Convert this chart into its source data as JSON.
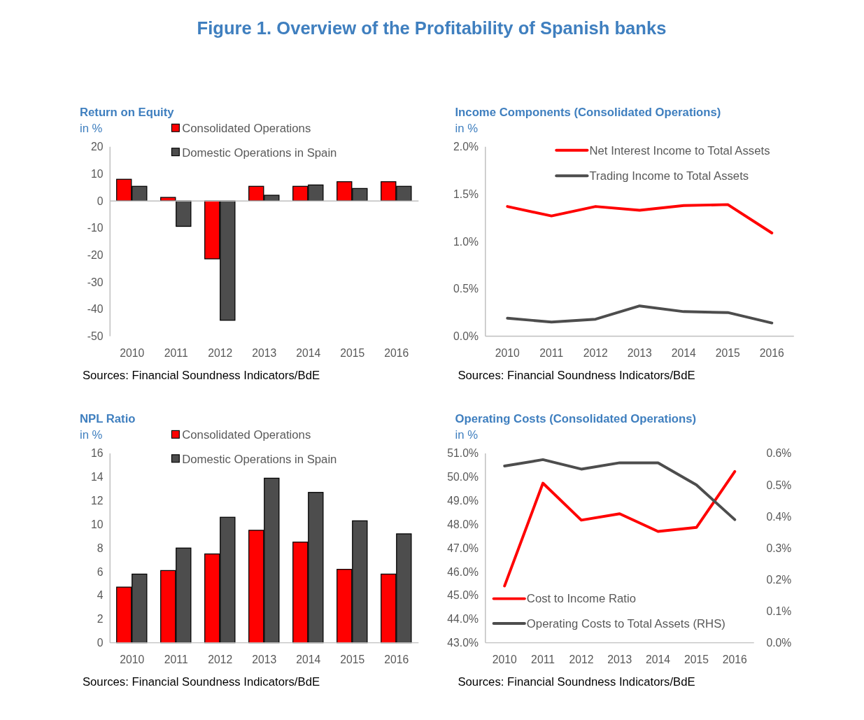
{
  "chart_data": [
    {
      "type": "other",
      "title": "Figure 1. Overview of the Profitability of Spanish banks"
    },
    {
      "type": "bar",
      "title": "Return on Equity",
      "ylabel": "in %",
      "categories": [
        "2010",
        "2011",
        "2012",
        "2013",
        "2014",
        "2015",
        "2016"
      ],
      "series": [
        {
          "name": "Consolidated Operations",
          "color": "#ff0000",
          "values": [
            8.0,
            1.3,
            -21.4,
            5.4,
            5.4,
            7.1,
            7.1
          ]
        },
        {
          "name": "Domestic Operations in Spain",
          "color": "#4d4d4d",
          "values": [
            5.4,
            -9.4,
            -44.1,
            2.1,
            5.9,
            4.6,
            5.4
          ]
        }
      ],
      "ylim": [
        -50,
        20
      ],
      "yticks": [
        -50,
        -40,
        -30,
        -20,
        -10,
        0,
        10,
        20
      ],
      "legend": "top",
      "annotations": [
        "Sources: Financial Soundness Indicators/BdE"
      ]
    },
    {
      "type": "line",
      "title": "Income Components (Consolidated Operations)",
      "ylabel": "in %",
      "categories": [
        "2010",
        "2011",
        "2012",
        "2013",
        "2014",
        "2015",
        "2016"
      ],
      "series": [
        {
          "name": "Net Interest Income to Total Assets",
          "color": "#ff0000",
          "values": [
            1.37,
            1.27,
            1.37,
            1.33,
            1.38,
            1.39,
            1.09
          ]
        },
        {
          "name": "Trading Income to Total Assets",
          "color": "#4d4d4d",
          "values": [
            0.19,
            0.15,
            0.18,
            0.32,
            0.26,
            0.25,
            0.14
          ]
        }
      ],
      "ylim": [
        0,
        2
      ],
      "yticks": [
        {
          "value": 0,
          "label": "0.0%"
        },
        {
          "value": 0.5,
          "label": "0.5%"
        },
        {
          "value": 1,
          "label": "1.0%"
        },
        {
          "value": 1.5,
          "label": "1.5%"
        },
        {
          "value": 2,
          "label": "2.0%"
        }
      ],
      "legend": "top right",
      "annotations": [
        "Sources: Financial Soundness Indicators/BdE"
      ]
    },
    {
      "type": "bar",
      "title": "NPL Ratio",
      "ylabel": "in %",
      "categories": [
        "2010",
        "2011",
        "2012",
        "2013",
        "2014",
        "2015",
        "2016"
      ],
      "series": [
        {
          "name": "Consolidated Operations",
          "color": "#ff0000",
          "values": [
            4.7,
            6.1,
            7.5,
            9.5,
            8.5,
            6.2,
            5.8
          ]
        },
        {
          "name": "Domestic Operations in Spain",
          "color": "#4d4d4d",
          "values": [
            5.8,
            8.0,
            10.6,
            13.9,
            12.7,
            10.3,
            9.2
          ]
        }
      ],
      "ylim": [
        0,
        16
      ],
      "yticks": [
        0,
        2,
        4,
        6,
        8,
        10,
        12,
        14,
        16
      ],
      "legend": "top",
      "annotations": [
        "Sources: Financial Soundness Indicators/BdE"
      ]
    },
    {
      "type": "line",
      "title": "Operating Costs (Consolidated Operations)",
      "ylabel": "in %",
      "categories": [
        "2010",
        "2011",
        "2012",
        "2013",
        "2014",
        "2015",
        "2016"
      ],
      "series": [
        {
          "name": "Cost to Income Ratio",
          "color": "#ff0000",
          "values": [
            45.4,
            49.74,
            48.18,
            48.45,
            47.7,
            47.87,
            50.23
          ]
        },
        {
          "name": "Operating Costs to Total Assets (RHS)",
          "color": "#4d4d4d",
          "axis": "y2",
          "values": [
            0.56,
            0.58,
            0.55,
            0.57,
            0.57,
            0.5,
            0.39
          ]
        }
      ],
      "ylim": [
        43,
        51
      ],
      "yticks": [
        {
          "value": 43,
          "label": "43.0%"
        },
        {
          "value": 44,
          "label": "44.0%"
        },
        {
          "value": 45,
          "label": "45.0%"
        },
        {
          "value": 46,
          "label": "46.0%"
        },
        {
          "value": 47,
          "label": "47.0%"
        },
        {
          "value": 48,
          "label": "48.0%"
        },
        {
          "value": 49,
          "label": "49.0%"
        },
        {
          "value": 50,
          "label": "50.0%"
        },
        {
          "value": 51,
          "label": "51.0%"
        }
      ],
      "y2lim": [
        0,
        0.6
      ],
      "y2ticks": [
        {
          "value": 0,
          "label": "0.0%"
        },
        {
          "value": 0.1,
          "label": "0.1%"
        },
        {
          "value": 0.2,
          "label": "0.2%"
        },
        {
          "value": 0.3,
          "label": "0.3%"
        },
        {
          "value": 0.4,
          "label": "0.4%"
        },
        {
          "value": 0.5,
          "label": "0.5%"
        },
        {
          "value": 0.6,
          "label": "0.6%"
        }
      ],
      "legend": "bottom left",
      "annotations": [
        "Sources: Financial Soundness Indicators/BdE"
      ]
    }
  ]
}
